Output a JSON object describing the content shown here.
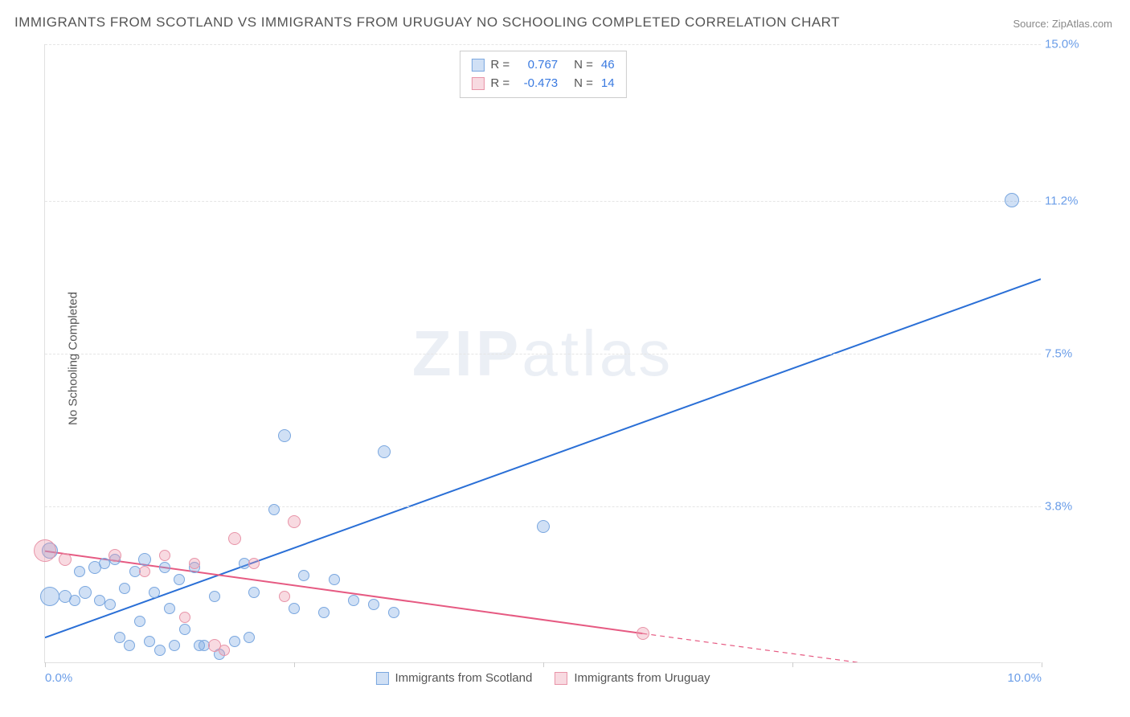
{
  "title": "IMMIGRANTS FROM SCOTLAND VS IMMIGRANTS FROM URUGUAY NO SCHOOLING COMPLETED CORRELATION CHART",
  "source": "Source: ZipAtlas.com",
  "watermark_a": "ZIP",
  "watermark_b": "atlas",
  "ylabel": "No Schooling Completed",
  "chart": {
    "type": "scatter-with-trend",
    "x_range": [
      0,
      10
    ],
    "y_range": [
      0,
      15
    ],
    "background_color": "#ffffff",
    "grid_color": "#e5e5e5",
    "y_gridlines": [
      3.8,
      7.5,
      11.2,
      15.0
    ],
    "y_tick_labels": [
      "3.8%",
      "7.5%",
      "11.2%",
      "15.0%"
    ],
    "x_ticks": [
      0,
      2.5,
      5.0,
      7.5,
      10.0
    ],
    "x_tick_visible_labels": {
      "0": "0.0%",
      "10": "10.0%"
    },
    "x_axis_label_color": "#6a9de8",
    "y_axis_label_color": "#6a9de8",
    "series": [
      {
        "name": "Immigrants from Scotland",
        "fill": "rgba(120,165,225,0.35)",
        "stroke": "#7aa7df",
        "trend_color": "#2a6fd6",
        "trend_width": 2,
        "R": 0.767,
        "N": 46,
        "trend": {
          "x1": 0,
          "y1": 0.6,
          "x2": 10,
          "y2": 9.3,
          "dash": false
        },
        "marker_radius_base": 7,
        "points": [
          {
            "x": 0.05,
            "y": 1.6,
            "r": 12
          },
          {
            "x": 0.05,
            "y": 2.7,
            "r": 10
          },
          {
            "x": 0.2,
            "y": 1.6,
            "r": 8
          },
          {
            "x": 0.3,
            "y": 1.5,
            "r": 7
          },
          {
            "x": 0.35,
            "y": 2.2,
            "r": 7
          },
          {
            "x": 0.4,
            "y": 1.7,
            "r": 8
          },
          {
            "x": 0.5,
            "y": 2.3,
            "r": 8
          },
          {
            "x": 0.55,
            "y": 1.5,
            "r": 7
          },
          {
            "x": 0.6,
            "y": 2.4,
            "r": 7
          },
          {
            "x": 0.65,
            "y": 1.4,
            "r": 7
          },
          {
            "x": 0.7,
            "y": 2.5,
            "r": 7
          },
          {
            "x": 0.75,
            "y": 0.6,
            "r": 7
          },
          {
            "x": 0.8,
            "y": 1.8,
            "r": 7
          },
          {
            "x": 0.85,
            "y": 0.4,
            "r": 7
          },
          {
            "x": 0.9,
            "y": 2.2,
            "r": 7
          },
          {
            "x": 0.95,
            "y": 1.0,
            "r": 7
          },
          {
            "x": 1.0,
            "y": 2.5,
            "r": 8
          },
          {
            "x": 1.05,
            "y": 0.5,
            "r": 7
          },
          {
            "x": 1.1,
            "y": 1.7,
            "r": 7
          },
          {
            "x": 1.15,
            "y": 0.3,
            "r": 7
          },
          {
            "x": 1.2,
            "y": 2.3,
            "r": 7
          },
          {
            "x": 1.25,
            "y": 1.3,
            "r": 7
          },
          {
            "x": 1.3,
            "y": 0.4,
            "r": 7
          },
          {
            "x": 1.35,
            "y": 2.0,
            "r": 7
          },
          {
            "x": 1.4,
            "y": 0.8,
            "r": 7
          },
          {
            "x": 1.5,
            "y": 2.3,
            "r": 7
          },
          {
            "x": 1.55,
            "y": 0.4,
            "r": 7
          },
          {
            "x": 1.6,
            "y": 0.4,
            "r": 7
          },
          {
            "x": 1.7,
            "y": 1.6,
            "r": 7
          },
          {
            "x": 1.75,
            "y": 0.2,
            "r": 7
          },
          {
            "x": 1.9,
            "y": 0.5,
            "r": 7
          },
          {
            "x": 2.0,
            "y": 2.4,
            "r": 7
          },
          {
            "x": 2.05,
            "y": 0.6,
            "r": 7
          },
          {
            "x": 2.1,
            "y": 1.7,
            "r": 7
          },
          {
            "x": 2.3,
            "y": 3.7,
            "r": 7
          },
          {
            "x": 2.4,
            "y": 5.5,
            "r": 8
          },
          {
            "x": 2.5,
            "y": 1.3,
            "r": 7
          },
          {
            "x": 2.6,
            "y": 2.1,
            "r": 7
          },
          {
            "x": 2.8,
            "y": 1.2,
            "r": 7
          },
          {
            "x": 2.9,
            "y": 2.0,
            "r": 7
          },
          {
            "x": 3.1,
            "y": 1.5,
            "r": 7
          },
          {
            "x": 3.3,
            "y": 1.4,
            "r": 7
          },
          {
            "x": 3.4,
            "y": 5.1,
            "r": 8
          },
          {
            "x": 3.5,
            "y": 1.2,
            "r": 7
          },
          {
            "x": 5.0,
            "y": 3.3,
            "r": 8
          },
          {
            "x": 9.7,
            "y": 11.2,
            "r": 9
          }
        ]
      },
      {
        "name": "Immigrants from Uruguay",
        "fill": "rgba(235,150,170,0.35)",
        "stroke": "#e894a8",
        "trend_color": "#e65a82",
        "trend_width": 2,
        "R": -0.473,
        "N": 14,
        "trend": {
          "x1": 0,
          "y1": 2.7,
          "x2": 6.0,
          "y2": 0.7,
          "dash": false
        },
        "trend_ext": {
          "x1": 6.0,
          "y1": 0.7,
          "x2": 10.0,
          "y2": -0.6,
          "dash": true
        },
        "marker_radius_base": 7,
        "points": [
          {
            "x": 0.0,
            "y": 2.7,
            "r": 14
          },
          {
            "x": 0.2,
            "y": 2.5,
            "r": 8
          },
          {
            "x": 0.7,
            "y": 2.6,
            "r": 8
          },
          {
            "x": 1.0,
            "y": 2.2,
            "r": 7
          },
          {
            "x": 1.2,
            "y": 2.6,
            "r": 7
          },
          {
            "x": 1.4,
            "y": 1.1,
            "r": 7
          },
          {
            "x": 1.5,
            "y": 2.4,
            "r": 7
          },
          {
            "x": 1.7,
            "y": 0.4,
            "r": 8
          },
          {
            "x": 1.8,
            "y": 0.3,
            "r": 7
          },
          {
            "x": 1.9,
            "y": 3.0,
            "r": 8
          },
          {
            "x": 2.1,
            "y": 2.4,
            "r": 7
          },
          {
            "x": 2.4,
            "y": 1.6,
            "r": 7
          },
          {
            "x": 2.5,
            "y": 3.4,
            "r": 8
          },
          {
            "x": 6.0,
            "y": 0.7,
            "r": 8
          }
        ]
      }
    ]
  },
  "legend_top": [
    {
      "swatch_fill": "rgba(120,165,225,0.35)",
      "swatch_stroke": "#7aa7df",
      "r_label": "R =",
      "r_val": "0.767",
      "n_label": "N =",
      "n_val": "46"
    },
    {
      "swatch_fill": "rgba(235,150,170,0.35)",
      "swatch_stroke": "#e894a8",
      "r_label": "R =",
      "r_val": "-0.473",
      "n_label": "N =",
      "n_val": "14"
    }
  ],
  "legend_bottom": [
    {
      "swatch_fill": "rgba(120,165,225,0.35)",
      "swatch_stroke": "#7aa7df",
      "label": "Immigrants from Scotland"
    },
    {
      "swatch_fill": "rgba(235,150,170,0.35)",
      "swatch_stroke": "#e894a8",
      "label": "Immigrants from Uruguay"
    }
  ]
}
